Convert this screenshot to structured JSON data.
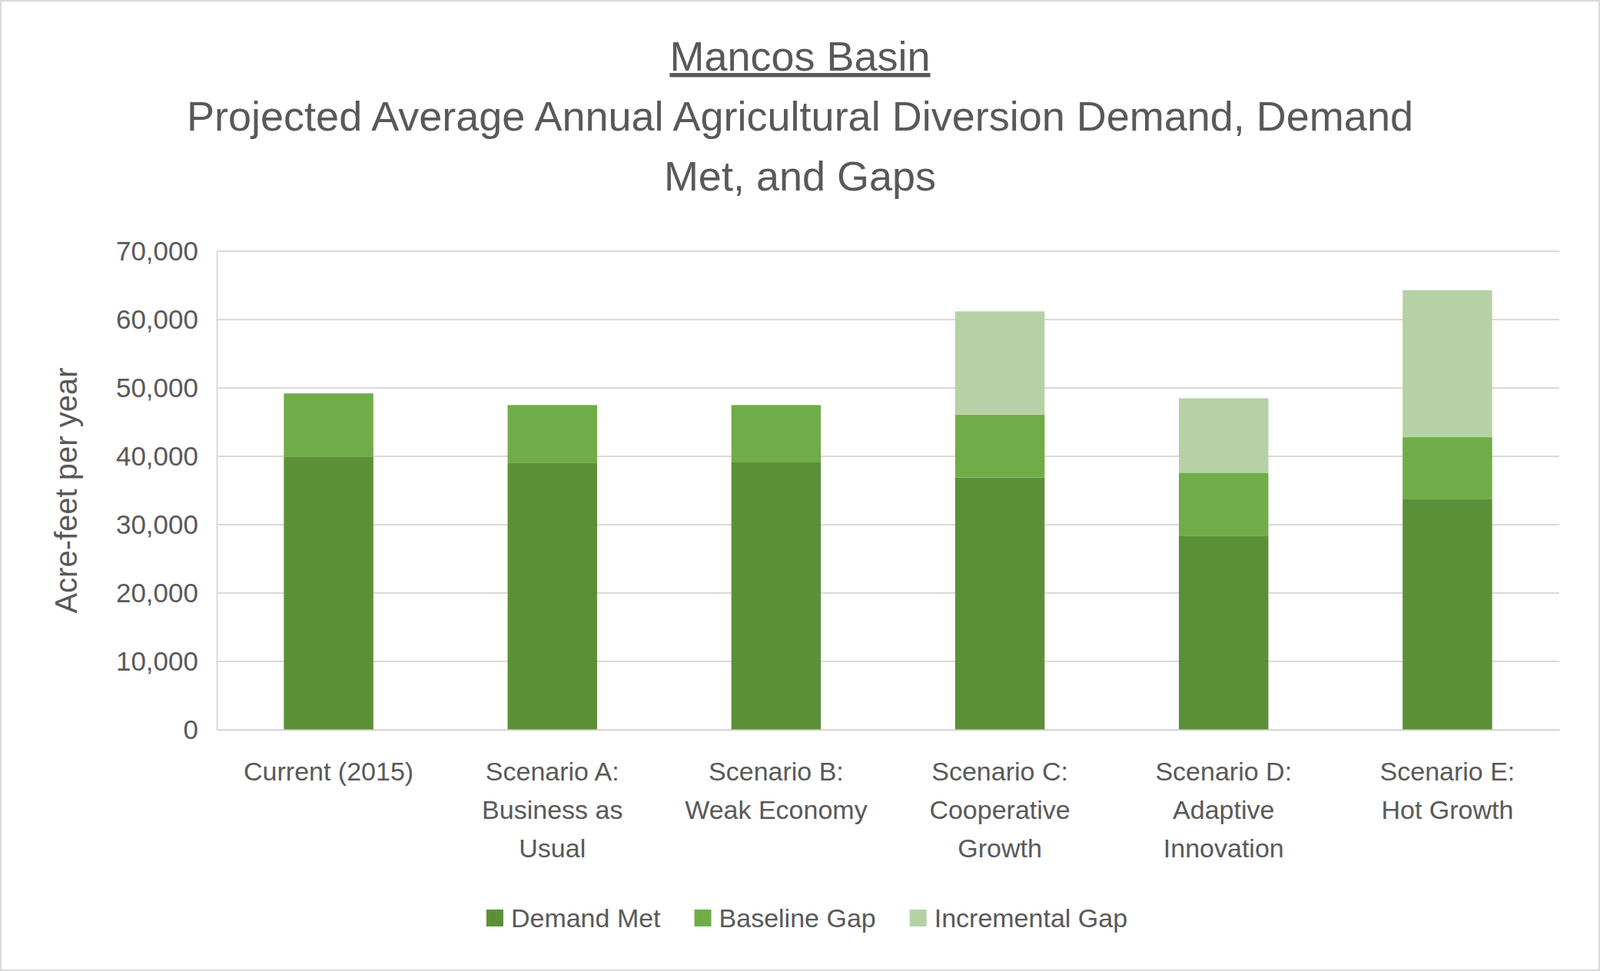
{
  "chart_data": {
    "type": "bar",
    "stacked": true,
    "title": "Mancos Basin",
    "subtitle": "Projected Average Annual Agricultural Diversion Demand, Demand Met, and Gaps",
    "y_label": "Acre-feet per year",
    "categories": [
      "Current (2015)",
      "Scenario A: Business as Usual",
      "Scenario B: Weak Economy",
      "Scenario C: Cooperative Growth",
      "Scenario D: Adaptive Innovation",
      "Scenario E: Hot Growth"
    ],
    "series": [
      {
        "name": "Demand Met",
        "color": "#5b9038",
        "values": [
          39900,
          39000,
          39100,
          36900,
          28400,
          33700
        ]
      },
      {
        "name": "Baseline Gap",
        "color": "#70ad47",
        "values": [
          9300,
          8500,
          8400,
          9200,
          9200,
          9100
        ]
      },
      {
        "name": "Incremental Gap",
        "color": "#b6d1a6",
        "values": [
          null,
          null,
          null,
          15100,
          10900,
          21500
        ]
      }
    ],
    "ylim": [
      0,
      70000
    ],
    "yticks": [
      0,
      {
        "value": 10000,
        "label": "10,000"
      },
      {
        "value": 20000,
        "label": "20,000"
      },
      {
        "value": 30000,
        "label": "30,000"
      },
      {
        "value": 40000,
        "label": "40,000"
      },
      {
        "value": 50000,
        "label": "50,000"
      },
      {
        "value": 60000,
        "label": "60,000"
      },
      {
        "value": 70000,
        "label": "70,000"
      }
    ],
    "grid": true,
    "legend": "bottom"
  }
}
